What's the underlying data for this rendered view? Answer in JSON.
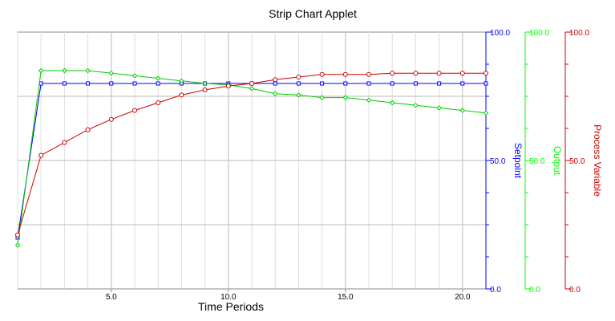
{
  "chart_data": {
    "type": "line",
    "title": "Strip Chart Applet",
    "xlabel": "Time Periods",
    "xlim": [
      1,
      21
    ],
    "x_ticks": [
      5.0,
      10.0,
      15.0,
      20.0
    ],
    "x_tick_labels": [
      "5.0",
      "10.0",
      "15.0",
      "20.0"
    ],
    "grid": true,
    "x": [
      1,
      2,
      3,
      4,
      5,
      6,
      7,
      8,
      9,
      10,
      11,
      12,
      13,
      14,
      15,
      16,
      17,
      18,
      19,
      20,
      21
    ],
    "axes": [
      {
        "name": "Setpoint",
        "color": "#0000ff",
        "ylim": [
          0,
          100
        ],
        "tick_labels": [
          "0.0",
          "50.0",
          "100.0"
        ]
      },
      {
        "name": "Output",
        "color": "#00ff00",
        "ylim": [
          0,
          100
        ],
        "tick_labels": [
          "0.0",
          "50.0",
          "100.0"
        ]
      },
      {
        "name": "Process Variable",
        "color": "#cc0000",
        "ylim": [
          0,
          100
        ],
        "tick_labels": [
          "0.0",
          "50.0",
          "100.0"
        ]
      }
    ],
    "series": [
      {
        "name": "Setpoint",
        "color": "#0000ff",
        "marker": "square",
        "values": [
          20,
          80,
          80,
          80,
          80,
          80,
          80,
          80,
          80,
          80,
          80,
          80,
          80,
          80,
          80,
          80,
          80,
          80,
          80,
          80,
          80
        ]
      },
      {
        "name": "Output",
        "color": "#00cc00",
        "marker": "diamond",
        "values": [
          17,
          85,
          85,
          85,
          84,
          83,
          82,
          81,
          80,
          79.5,
          78,
          76,
          75.5,
          74.5,
          74.5,
          73.5,
          72.5,
          71.5,
          70.5,
          69.5,
          68.5
        ]
      },
      {
        "name": "Process Variable",
        "color": "#cc0000",
        "marker": "circle",
        "values": [
          21,
          52,
          57,
          62,
          66,
          69.5,
          72.5,
          75.5,
          77.5,
          79,
          80,
          81.5,
          82.5,
          83.5,
          83.5,
          83.5,
          84,
          84,
          84,
          84,
          84
        ]
      }
    ]
  }
}
